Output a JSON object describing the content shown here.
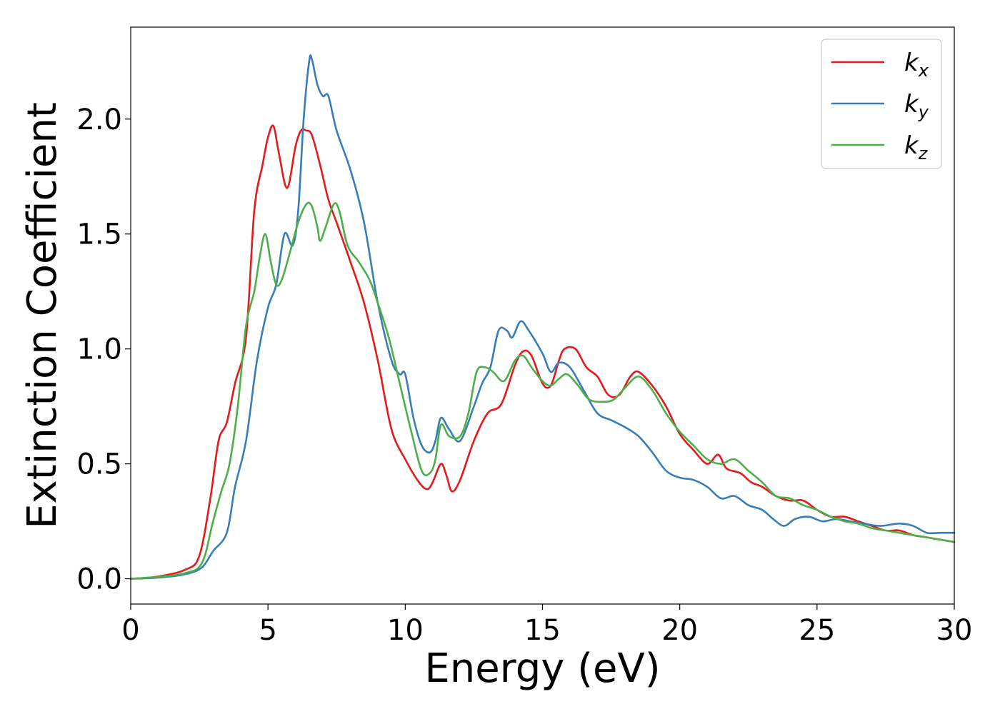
{
  "chart_data": {
    "type": "line",
    "xlabel": "Energy (eV)",
    "ylabel": "Extinction Coefficient",
    "xlim": [
      0,
      30
    ],
    "ylim": [
      -0.11,
      2.4
    ],
    "xticks": [
      0,
      5,
      10,
      15,
      20,
      25,
      30
    ],
    "xtick_labels": [
      "0",
      "5",
      "10",
      "15",
      "20",
      "25",
      "30"
    ],
    "yticks": [
      0.0,
      0.5,
      1.0,
      1.5,
      2.0
    ],
    "ytick_labels": [
      "0.0",
      "0.5",
      "1.0",
      "1.5",
      "2.0"
    ],
    "grid": false,
    "legend_position": "top-right",
    "series": [
      {
        "name": "k",
        "subscript": "x",
        "color": "#e41a1c",
        "points": [
          [
            0,
            0
          ],
          [
            1,
            0.01
          ],
          [
            2,
            0.04
          ],
          [
            2.5,
            0.1
          ],
          [
            2.9,
            0.35
          ],
          [
            3.2,
            0.6
          ],
          [
            3.5,
            0.68
          ],
          [
            3.8,
            0.85
          ],
          [
            4.2,
            1.05
          ],
          [
            4.5,
            1.6
          ],
          [
            4.8,
            1.8
          ],
          [
            5.0,
            1.92
          ],
          [
            5.2,
            1.97
          ],
          [
            5.4,
            1.85
          ],
          [
            5.7,
            1.7
          ],
          [
            6.0,
            1.88
          ],
          [
            6.2,
            1.95
          ],
          [
            6.4,
            1.95
          ],
          [
            6.6,
            1.93
          ],
          [
            6.9,
            1.8
          ],
          [
            7.2,
            1.65
          ],
          [
            7.5,
            1.55
          ],
          [
            8.0,
            1.38
          ],
          [
            8.5,
            1.2
          ],
          [
            9.0,
            0.95
          ],
          [
            9.5,
            0.65
          ],
          [
            10.0,
            0.52
          ],
          [
            10.5,
            0.42
          ],
          [
            10.8,
            0.39
          ],
          [
            11.0,
            0.42
          ],
          [
            11.3,
            0.5
          ],
          [
            11.5,
            0.45
          ],
          [
            11.7,
            0.38
          ],
          [
            12.0,
            0.43
          ],
          [
            12.5,
            0.6
          ],
          [
            13.0,
            0.72
          ],
          [
            13.5,
            0.76
          ],
          [
            14.0,
            0.93
          ],
          [
            14.3,
            0.99
          ],
          [
            14.6,
            0.97
          ],
          [
            15.0,
            0.85
          ],
          [
            15.3,
            0.84
          ],
          [
            15.6,
            0.95
          ],
          [
            15.8,
            1.0
          ],
          [
            16.2,
            1.0
          ],
          [
            16.6,
            0.92
          ],
          [
            17.0,
            0.88
          ],
          [
            17.4,
            0.8
          ],
          [
            17.8,
            0.8
          ],
          [
            18.2,
            0.88
          ],
          [
            18.5,
            0.9
          ],
          [
            19.0,
            0.84
          ],
          [
            19.5,
            0.75
          ],
          [
            20.0,
            0.63
          ],
          [
            20.5,
            0.56
          ],
          [
            21.0,
            0.5
          ],
          [
            21.4,
            0.54
          ],
          [
            21.7,
            0.48
          ],
          [
            22.2,
            0.46
          ],
          [
            22.6,
            0.42
          ],
          [
            23.0,
            0.4
          ],
          [
            23.5,
            0.36
          ],
          [
            24.0,
            0.34
          ],
          [
            24.5,
            0.34
          ],
          [
            25.0,
            0.3
          ],
          [
            25.5,
            0.27
          ],
          [
            26.0,
            0.27
          ],
          [
            26.5,
            0.25
          ],
          [
            27.0,
            0.23
          ],
          [
            27.5,
            0.21
          ],
          [
            28.0,
            0.21
          ],
          [
            28.5,
            0.19
          ],
          [
            29.0,
            0.18
          ],
          [
            30.0,
            0.16
          ]
        ]
      },
      {
        "name": "k",
        "subscript": "y",
        "color": "#377eb8",
        "points": [
          [
            0,
            0
          ],
          [
            1,
            0.005
          ],
          [
            2,
            0.02
          ],
          [
            2.6,
            0.05
          ],
          [
            3.0,
            0.12
          ],
          [
            3.5,
            0.2
          ],
          [
            3.8,
            0.4
          ],
          [
            4.2,
            0.6
          ],
          [
            4.6,
            0.95
          ],
          [
            5.0,
            1.18
          ],
          [
            5.3,
            1.28
          ],
          [
            5.6,
            1.5
          ],
          [
            5.9,
            1.45
          ],
          [
            6.1,
            1.6
          ],
          [
            6.3,
            2.0
          ],
          [
            6.5,
            2.25
          ],
          [
            6.6,
            2.26
          ],
          [
            6.8,
            2.15
          ],
          [
            7.0,
            2.1
          ],
          [
            7.2,
            2.1
          ],
          [
            7.5,
            1.95
          ],
          [
            8.0,
            1.78
          ],
          [
            8.5,
            1.55
          ],
          [
            9.0,
            1.2
          ],
          [
            9.5,
            0.95
          ],
          [
            9.8,
            0.89
          ],
          [
            10.0,
            0.89
          ],
          [
            10.3,
            0.7
          ],
          [
            10.6,
            0.58
          ],
          [
            10.9,
            0.55
          ],
          [
            11.1,
            0.6
          ],
          [
            11.3,
            0.7
          ],
          [
            11.6,
            0.65
          ],
          [
            12.0,
            0.6
          ],
          [
            12.5,
            0.75
          ],
          [
            12.8,
            0.85
          ],
          [
            13.1,
            0.92
          ],
          [
            13.4,
            1.08
          ],
          [
            13.7,
            1.08
          ],
          [
            13.9,
            1.05
          ],
          [
            14.2,
            1.12
          ],
          [
            14.5,
            1.08
          ],
          [
            15.0,
            0.98
          ],
          [
            15.3,
            0.9
          ],
          [
            15.6,
            0.94
          ],
          [
            16.0,
            0.92
          ],
          [
            16.5,
            0.82
          ],
          [
            17.0,
            0.72
          ],
          [
            17.5,
            0.69
          ],
          [
            18.0,
            0.66
          ],
          [
            18.5,
            0.62
          ],
          [
            19.0,
            0.55
          ],
          [
            19.5,
            0.47
          ],
          [
            20.0,
            0.44
          ],
          [
            20.5,
            0.43
          ],
          [
            21.0,
            0.4
          ],
          [
            21.5,
            0.35
          ],
          [
            22.0,
            0.36
          ],
          [
            22.5,
            0.32
          ],
          [
            23.0,
            0.3
          ],
          [
            23.4,
            0.26
          ],
          [
            23.8,
            0.23
          ],
          [
            24.2,
            0.26
          ],
          [
            24.7,
            0.27
          ],
          [
            25.2,
            0.25
          ],
          [
            25.7,
            0.26
          ],
          [
            26.2,
            0.25
          ],
          [
            26.7,
            0.24
          ],
          [
            27.3,
            0.23
          ],
          [
            28.0,
            0.24
          ],
          [
            28.5,
            0.23
          ],
          [
            29.0,
            0.2
          ],
          [
            29.5,
            0.2
          ],
          [
            30.0,
            0.2
          ]
        ]
      },
      {
        "name": "k",
        "subscript": "z",
        "color": "#4daf4a",
        "points": [
          [
            0,
            0
          ],
          [
            1,
            0.008
          ],
          [
            2,
            0.025
          ],
          [
            2.6,
            0.07
          ],
          [
            3.0,
            0.25
          ],
          [
            3.3,
            0.38
          ],
          [
            3.6,
            0.5
          ],
          [
            3.9,
            0.75
          ],
          [
            4.2,
            1.1
          ],
          [
            4.5,
            1.25
          ],
          [
            4.7,
            1.4
          ],
          [
            4.9,
            1.5
          ],
          [
            5.1,
            1.38
          ],
          [
            5.3,
            1.28
          ],
          [
            5.5,
            1.3
          ],
          [
            5.8,
            1.42
          ],
          [
            6.1,
            1.55
          ],
          [
            6.4,
            1.63
          ],
          [
            6.6,
            1.62
          ],
          [
            6.8,
            1.53
          ],
          [
            6.9,
            1.47
          ],
          [
            7.1,
            1.53
          ],
          [
            7.4,
            1.63
          ],
          [
            7.6,
            1.6
          ],
          [
            7.9,
            1.45
          ],
          [
            8.3,
            1.38
          ],
          [
            8.7,
            1.3
          ],
          [
            9.0,
            1.2
          ],
          [
            9.4,
            1.05
          ],
          [
            9.8,
            0.85
          ],
          [
            10.2,
            0.65
          ],
          [
            10.6,
            0.47
          ],
          [
            10.9,
            0.46
          ],
          [
            11.1,
            0.52
          ],
          [
            11.3,
            0.67
          ],
          [
            11.6,
            0.62
          ],
          [
            12.0,
            0.62
          ],
          [
            12.3,
            0.72
          ],
          [
            12.6,
            0.9
          ],
          [
            12.9,
            0.92
          ],
          [
            13.2,
            0.9
          ],
          [
            13.6,
            0.86
          ],
          [
            14.0,
            0.95
          ],
          [
            14.3,
            0.97
          ],
          [
            14.6,
            0.92
          ],
          [
            15.0,
            0.86
          ],
          [
            15.3,
            0.84
          ],
          [
            15.6,
            0.87
          ],
          [
            15.9,
            0.89
          ],
          [
            16.3,
            0.84
          ],
          [
            16.7,
            0.78
          ],
          [
            17.2,
            0.77
          ],
          [
            17.6,
            0.78
          ],
          [
            18.0,
            0.83
          ],
          [
            18.5,
            0.88
          ],
          [
            19.0,
            0.82
          ],
          [
            19.5,
            0.72
          ],
          [
            20.0,
            0.64
          ],
          [
            20.5,
            0.58
          ],
          [
            21.0,
            0.52
          ],
          [
            21.5,
            0.5
          ],
          [
            22.0,
            0.52
          ],
          [
            22.5,
            0.47
          ],
          [
            23.0,
            0.42
          ],
          [
            23.5,
            0.36
          ],
          [
            24.0,
            0.35
          ],
          [
            24.5,
            0.32
          ],
          [
            25.0,
            0.3
          ],
          [
            25.5,
            0.27
          ],
          [
            26.0,
            0.25
          ],
          [
            26.5,
            0.24
          ],
          [
            27.0,
            0.22
          ],
          [
            27.5,
            0.21
          ],
          [
            28.0,
            0.2
          ],
          [
            28.5,
            0.19
          ],
          [
            29.0,
            0.18
          ],
          [
            29.5,
            0.17
          ],
          [
            30.0,
            0.16
          ]
        ]
      }
    ]
  }
}
